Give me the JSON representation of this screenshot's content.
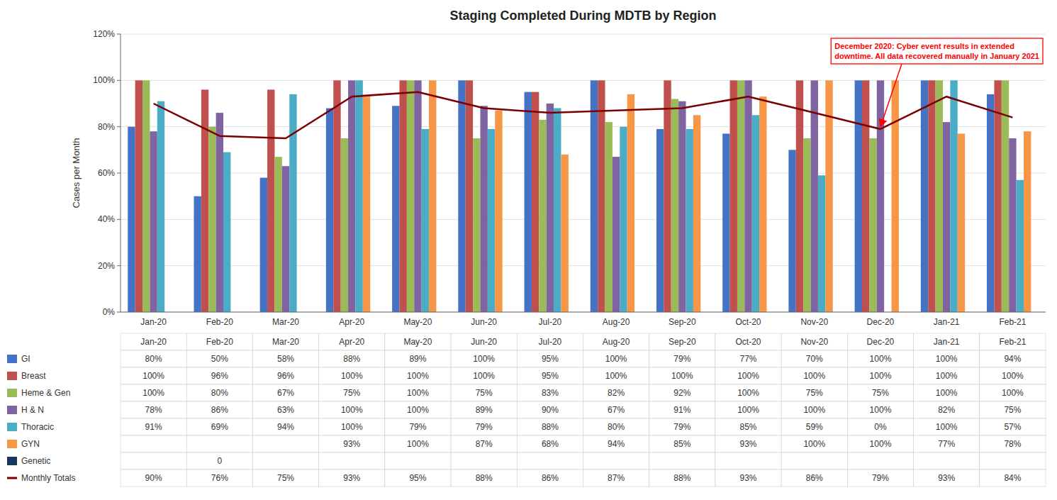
{
  "chart_data": {
    "type": "bar",
    "title": "Staging Completed During MDTB by Region",
    "y_label": "Cases per Month",
    "categories": [
      "Jan-20",
      "Feb-20",
      "Mar-20",
      "Apr-20",
      "May-20",
      "Jun-20",
      "Jul-20",
      "Aug-20",
      "Sep-20",
      "Oct-20",
      "Nov-20",
      "Dec-20",
      "Jan-21",
      "Feb-21"
    ],
    "series": [
      {
        "name": "GI",
        "color": "#4472C4",
        "values": [
          80,
          50,
          58,
          88,
          89,
          100,
          95,
          100,
          79,
          77,
          70,
          100,
          100,
          94
        ],
        "value_labels": [
          "80%",
          "50%",
          "58%",
          "88%",
          "89%",
          "100%",
          "95%",
          "100%",
          "79%",
          "77%",
          "70%",
          "100%",
          "100%",
          "94%"
        ]
      },
      {
        "name": "Breast",
        "color": "#C0504D",
        "values": [
          100,
          96,
          96,
          100,
          100,
          100,
          95,
          100,
          100,
          100,
          100,
          100,
          100,
          100
        ],
        "value_labels": [
          "100%",
          "96%",
          "96%",
          "100%",
          "100%",
          "100%",
          "95%",
          "100%",
          "100%",
          "100%",
          "100%",
          "100%",
          "100%",
          "100%"
        ]
      },
      {
        "name": "Heme & Gen",
        "color": "#9BBB59",
        "values": [
          100,
          80,
          67,
          75,
          100,
          75,
          83,
          82,
          92,
          100,
          75,
          75,
          100,
          100
        ],
        "value_labels": [
          "100%",
          "80%",
          "67%",
          "75%",
          "100%",
          "75%",
          "83%",
          "82%",
          "92%",
          "100%",
          "75%",
          "75%",
          "100%",
          "100%"
        ]
      },
      {
        "name": "H & N",
        "color": "#8064A2",
        "values": [
          78,
          86,
          63,
          100,
          100,
          89,
          90,
          67,
          91,
          100,
          100,
          100,
          82,
          75
        ],
        "value_labels": [
          "78%",
          "86%",
          "63%",
          "100%",
          "100%",
          "89%",
          "90%",
          "67%",
          "91%",
          "100%",
          "100%",
          "100%",
          "82%",
          "75%"
        ]
      },
      {
        "name": "Thoracic",
        "color": "#4BACC6",
        "values": [
          91,
          69,
          94,
          100,
          79,
          79,
          88,
          80,
          79,
          85,
          59,
          0,
          100,
          57
        ],
        "value_labels": [
          "91%",
          "69%",
          "94%",
          "100%",
          "79%",
          "79%",
          "88%",
          "80%",
          "79%",
          "85%",
          "59%",
          "0%",
          "100%",
          "57%"
        ]
      },
      {
        "name": "GYN",
        "color": "#F79646",
        "values": [
          null,
          null,
          null,
          93,
          100,
          87,
          68,
          94,
          85,
          93,
          100,
          100,
          77,
          78
        ],
        "value_labels": [
          null,
          null,
          null,
          "93%",
          "100%",
          "87%",
          "68%",
          "94%",
          "85%",
          "93%",
          "100%",
          "100%",
          "77%",
          "78%"
        ]
      },
      {
        "name": "Genetic",
        "color": "#17375E",
        "values": [
          null,
          0,
          null,
          null,
          null,
          null,
          null,
          null,
          null,
          null,
          null,
          null,
          null,
          null
        ],
        "value_labels": [
          null,
          "0",
          null,
          null,
          null,
          null,
          null,
          null,
          null,
          null,
          null,
          null,
          null,
          null
        ]
      },
      {
        "name": "Monthly Totals",
        "type": "line",
        "color": "#7B0000",
        "values": [
          90,
          76,
          75,
          93,
          95,
          88,
          86,
          87,
          88,
          93,
          86,
          79,
          93,
          84
        ],
        "value_labels": [
          "90%",
          "76%",
          "75%",
          "93%",
          "95%",
          "88%",
          "86%",
          "87%",
          "88%",
          "93%",
          "86%",
          "79%",
          "93%",
          "84%"
        ]
      }
    ],
    "ylim": [
      0,
      120
    ],
    "yticks": [
      {
        "value": 0,
        "label": "0%"
      },
      {
        "value": 20,
        "label": "20%"
      },
      {
        "value": 40,
        "label": "40%"
      },
      {
        "value": 60,
        "label": "60%"
      },
      {
        "value": 80,
        "label": "80%"
      },
      {
        "value": 100,
        "label": "100%"
      },
      {
        "value": 120,
        "label": "120%"
      }
    ],
    "grid": true,
    "annotations": [
      {
        "text": "December 2020: Cyber event results in extended\ndowntime. All data recovered manually in January 2021",
        "x": "Dec-20",
        "y": 79,
        "color": "#FF0000"
      }
    ]
  }
}
